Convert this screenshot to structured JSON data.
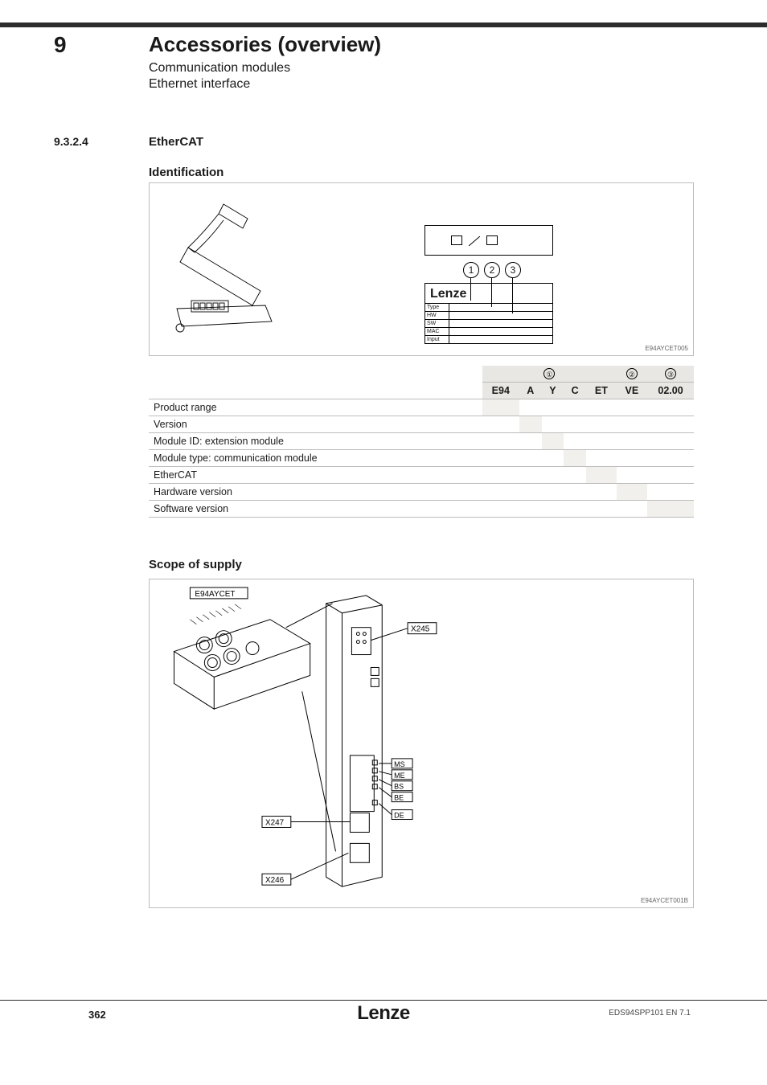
{
  "header": {
    "chapter_num": "9",
    "title": "Accessories (overview)",
    "sub1": "Communication modules",
    "sub2": "Ethernet interface"
  },
  "section": {
    "num": "9.3.2.4",
    "title": "EtherCAT"
  },
  "heading_identification": "Identification",
  "heading_scope": "Scope of supply",
  "fig1": {
    "ref": "E94AYCET005",
    "plate_brand": "Lenze",
    "plate_rows": [
      "Type",
      "HW",
      "SW",
      "MAC",
      "Input"
    ],
    "circles": [
      "1",
      "2",
      "3"
    ]
  },
  "id_table": {
    "group_labels": [
      "①",
      "②",
      "③"
    ],
    "cols": [
      "E94",
      "A",
      "Y",
      "C",
      "ET",
      "VE",
      "02.00"
    ],
    "rows": [
      "Product range",
      "Version",
      "Module ID: extension module",
      "Module type: communication module",
      "EtherCAT",
      "Hardware version",
      "Software version"
    ],
    "bar_end": [
      1,
      2,
      3,
      4,
      5,
      6,
      7
    ]
  },
  "fig2": {
    "ref": "E94AYCET001B",
    "labels": {
      "top": "E94AYCET",
      "x245": "X245",
      "x246": "X246",
      "x247": "X247",
      "ms": "MS",
      "me": "ME",
      "bs": "BS",
      "be": "BE",
      "de": "DE"
    }
  },
  "footer": {
    "page": "362",
    "brand": "Lenze",
    "doc_code": "EDS94SPP101  EN  7.1"
  },
  "colors": {
    "text": "#1a1a1a",
    "rule": "#bcbcbc",
    "shade": "#e8e7e3",
    "shade_light": "#f1f0ec"
  }
}
